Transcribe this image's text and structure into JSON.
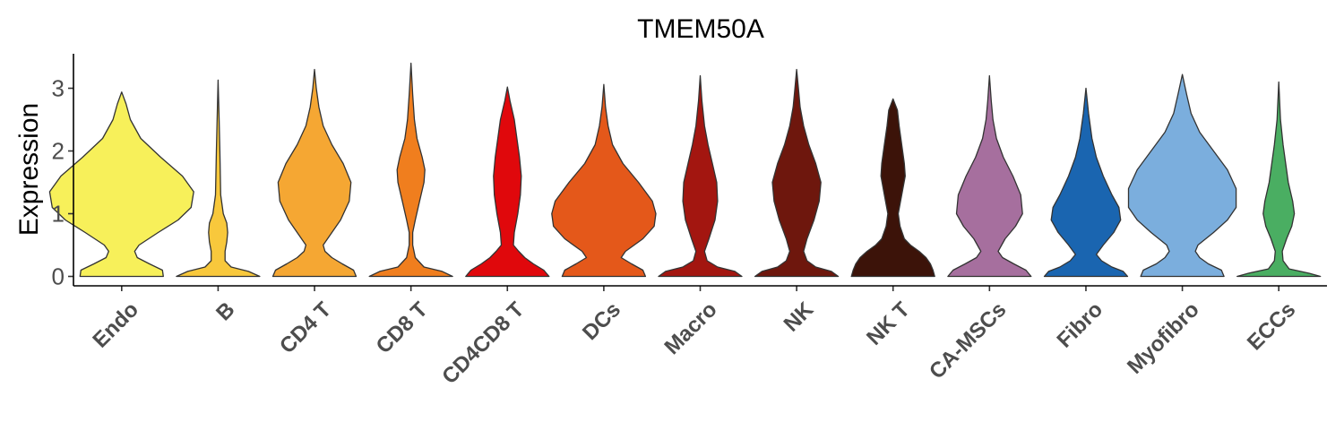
{
  "chart_data": {
    "type": "violin",
    "title": "TMEM50A",
    "ylabel": "Expression",
    "xlabel": "",
    "ylim": [
      -0.15,
      3.55
    ],
    "yticks": [
      0,
      1,
      2,
      3
    ],
    "grid": false,
    "legend": "none",
    "categories": [
      "Endo",
      "B",
      "CD4 T",
      "CD8 T",
      "CD4CD8 T",
      "DCs",
      "Macro",
      "NK",
      "NK T",
      "CA-MSCs",
      "Fibro",
      "Myofibro",
      "ECCs"
    ],
    "colors": [
      "#F7F05A",
      "#F8C83C",
      "#F5A733",
      "#F07E1E",
      "#E0080C",
      "#E4581A",
      "#A31610",
      "#6E170D",
      "#3C1309",
      "#A66F9E",
      "#1A65B0",
      "#7BAEDD",
      "#4AAE62"
    ],
    "violins": [
      {
        "max": 2.94,
        "profile": [
          [
            0,
            0.48
          ],
          [
            0.1,
            0.47
          ],
          [
            0.2,
            0.32
          ],
          [
            0.3,
            0.18
          ],
          [
            0.4,
            0.15
          ],
          [
            0.5,
            0.2
          ],
          [
            0.7,
            0.42
          ],
          [
            0.9,
            0.65
          ],
          [
            1.1,
            0.8
          ],
          [
            1.35,
            0.83
          ],
          [
            1.6,
            0.7
          ],
          [
            1.9,
            0.45
          ],
          [
            2.2,
            0.22
          ],
          [
            2.5,
            0.1
          ],
          [
            2.75,
            0.05
          ],
          [
            2.94,
            0
          ]
        ]
      },
      {
        "max": 3.13,
        "profile": [
          [
            0,
            0.48
          ],
          [
            0.08,
            0.35
          ],
          [
            0.15,
            0.15
          ],
          [
            0.25,
            0.08
          ],
          [
            0.4,
            0.08
          ],
          [
            0.55,
            0.1
          ],
          [
            0.7,
            0.11
          ],
          [
            0.85,
            0.1
          ],
          [
            1.0,
            0.06
          ],
          [
            1.3,
            0.03
          ],
          [
            2.0,
            0.02
          ],
          [
            2.6,
            0.01
          ],
          [
            3.13,
            0
          ]
        ]
      },
      {
        "max": 3.3,
        "profile": [
          [
            0,
            0.48
          ],
          [
            0.1,
            0.45
          ],
          [
            0.2,
            0.32
          ],
          [
            0.3,
            0.2
          ],
          [
            0.4,
            0.12
          ],
          [
            0.5,
            0.1
          ],
          [
            0.7,
            0.2
          ],
          [
            0.9,
            0.3
          ],
          [
            1.2,
            0.4
          ],
          [
            1.5,
            0.42
          ],
          [
            1.8,
            0.33
          ],
          [
            2.1,
            0.2
          ],
          [
            2.4,
            0.1
          ],
          [
            2.7,
            0.05
          ],
          [
            3.0,
            0.02
          ],
          [
            3.3,
            0
          ]
        ]
      },
      {
        "max": 3.4,
        "profile": [
          [
            0,
            0.48
          ],
          [
            0.08,
            0.36
          ],
          [
            0.15,
            0.15
          ],
          [
            0.3,
            0.05
          ],
          [
            0.5,
            0.02
          ],
          [
            0.7,
            0.02
          ],
          [
            0.9,
            0.05
          ],
          [
            1.2,
            0.1
          ],
          [
            1.5,
            0.15
          ],
          [
            1.7,
            0.16
          ],
          [
            1.9,
            0.13
          ],
          [
            2.2,
            0.07
          ],
          [
            2.5,
            0.04
          ],
          [
            2.9,
            0.02
          ],
          [
            3.4,
            0
          ]
        ]
      },
      {
        "max": 3.02,
        "profile": [
          [
            0,
            0.48
          ],
          [
            0.1,
            0.42
          ],
          [
            0.2,
            0.3
          ],
          [
            0.3,
            0.2
          ],
          [
            0.4,
            0.13
          ],
          [
            0.5,
            0.07
          ],
          [
            0.7,
            0.08
          ],
          [
            1.0,
            0.12
          ],
          [
            1.3,
            0.15
          ],
          [
            1.6,
            0.16
          ],
          [
            1.9,
            0.14
          ],
          [
            2.2,
            0.11
          ],
          [
            2.5,
            0.08
          ],
          [
            2.8,
            0.03
          ],
          [
            3.02,
            0
          ]
        ]
      },
      {
        "max": 3.06,
        "profile": [
          [
            0,
            0.48
          ],
          [
            0.1,
            0.45
          ],
          [
            0.2,
            0.32
          ],
          [
            0.3,
            0.2
          ],
          [
            0.4,
            0.25
          ],
          [
            0.6,
            0.45
          ],
          [
            0.8,
            0.58
          ],
          [
            1.0,
            0.6
          ],
          [
            1.2,
            0.56
          ],
          [
            1.5,
            0.4
          ],
          [
            1.8,
            0.22
          ],
          [
            2.1,
            0.1
          ],
          [
            2.4,
            0.05
          ],
          [
            2.7,
            0.02
          ],
          [
            3.06,
            0
          ]
        ]
      },
      {
        "max": 3.2,
        "profile": [
          [
            0,
            0.48
          ],
          [
            0.08,
            0.4
          ],
          [
            0.15,
            0.2
          ],
          [
            0.25,
            0.08
          ],
          [
            0.4,
            0.05
          ],
          [
            0.6,
            0.1
          ],
          [
            0.9,
            0.17
          ],
          [
            1.2,
            0.2
          ],
          [
            1.5,
            0.19
          ],
          [
            1.8,
            0.14
          ],
          [
            2.1,
            0.09
          ],
          [
            2.4,
            0.05
          ],
          [
            2.8,
            0.02
          ],
          [
            3.2,
            0
          ]
        ]
      },
      {
        "max": 3.3,
        "profile": [
          [
            0,
            0.48
          ],
          [
            0.08,
            0.4
          ],
          [
            0.15,
            0.22
          ],
          [
            0.25,
            0.12
          ],
          [
            0.4,
            0.08
          ],
          [
            0.6,
            0.12
          ],
          [
            0.9,
            0.2
          ],
          [
            1.2,
            0.26
          ],
          [
            1.5,
            0.28
          ],
          [
            1.8,
            0.22
          ],
          [
            2.1,
            0.14
          ],
          [
            2.4,
            0.08
          ],
          [
            2.7,
            0.04
          ],
          [
            3.0,
            0.02
          ],
          [
            3.3,
            0
          ]
        ]
      },
      {
        "max": 2.83,
        "profile": [
          [
            0,
            0.48
          ],
          [
            0.1,
            0.46
          ],
          [
            0.2,
            0.43
          ],
          [
            0.3,
            0.38
          ],
          [
            0.4,
            0.3
          ],
          [
            0.5,
            0.2
          ],
          [
            0.6,
            0.13
          ],
          [
            0.8,
            0.08
          ],
          [
            1.0,
            0.06
          ],
          [
            1.3,
            0.1
          ],
          [
            1.6,
            0.14
          ],
          [
            1.8,
            0.13
          ],
          [
            2.1,
            0.1
          ],
          [
            2.4,
            0.07
          ],
          [
            2.65,
            0.05
          ],
          [
            2.83,
            0
          ]
        ]
      },
      {
        "max": 3.2,
        "profile": [
          [
            0,
            0.48
          ],
          [
            0.1,
            0.42
          ],
          [
            0.2,
            0.28
          ],
          [
            0.3,
            0.15
          ],
          [
            0.4,
            0.1
          ],
          [
            0.6,
            0.18
          ],
          [
            0.8,
            0.3
          ],
          [
            1.0,
            0.38
          ],
          [
            1.3,
            0.36
          ],
          [
            1.6,
            0.27
          ],
          [
            1.9,
            0.16
          ],
          [
            2.2,
            0.08
          ],
          [
            2.5,
            0.04
          ],
          [
            2.8,
            0.02
          ],
          [
            3.2,
            0
          ]
        ]
      },
      {
        "max": 3.0,
        "profile": [
          [
            0,
            0.48
          ],
          [
            0.08,
            0.43
          ],
          [
            0.15,
            0.3
          ],
          [
            0.25,
            0.18
          ],
          [
            0.35,
            0.12
          ],
          [
            0.5,
            0.2
          ],
          [
            0.7,
            0.32
          ],
          [
            0.9,
            0.4
          ],
          [
            1.1,
            0.38
          ],
          [
            1.3,
            0.3
          ],
          [
            1.6,
            0.2
          ],
          [
            1.9,
            0.12
          ],
          [
            2.2,
            0.07
          ],
          [
            2.6,
            0.03
          ],
          [
            3.0,
            0
          ]
        ]
      },
      {
        "max": 3.22,
        "profile": [
          [
            0,
            0.48
          ],
          [
            0.1,
            0.45
          ],
          [
            0.2,
            0.3
          ],
          [
            0.3,
            0.2
          ],
          [
            0.4,
            0.15
          ],
          [
            0.5,
            0.18
          ],
          [
            0.7,
            0.36
          ],
          [
            0.9,
            0.52
          ],
          [
            1.1,
            0.62
          ],
          [
            1.4,
            0.62
          ],
          [
            1.7,
            0.52
          ],
          [
            2.0,
            0.36
          ],
          [
            2.3,
            0.2
          ],
          [
            2.6,
            0.1
          ],
          [
            2.9,
            0.05
          ],
          [
            3.22,
            0
          ]
        ]
      },
      {
        "max": 3.1,
        "profile": [
          [
            0,
            0.48
          ],
          [
            0.05,
            0.35
          ],
          [
            0.12,
            0.12
          ],
          [
            0.25,
            0.05
          ],
          [
            0.4,
            0.04
          ],
          [
            0.6,
            0.09
          ],
          [
            0.8,
            0.15
          ],
          [
            1.0,
            0.18
          ],
          [
            1.2,
            0.16
          ],
          [
            1.5,
            0.11
          ],
          [
            1.8,
            0.08
          ],
          [
            2.1,
            0.05
          ],
          [
            2.5,
            0.02
          ],
          [
            3.1,
            0
          ]
        ]
      }
    ]
  }
}
